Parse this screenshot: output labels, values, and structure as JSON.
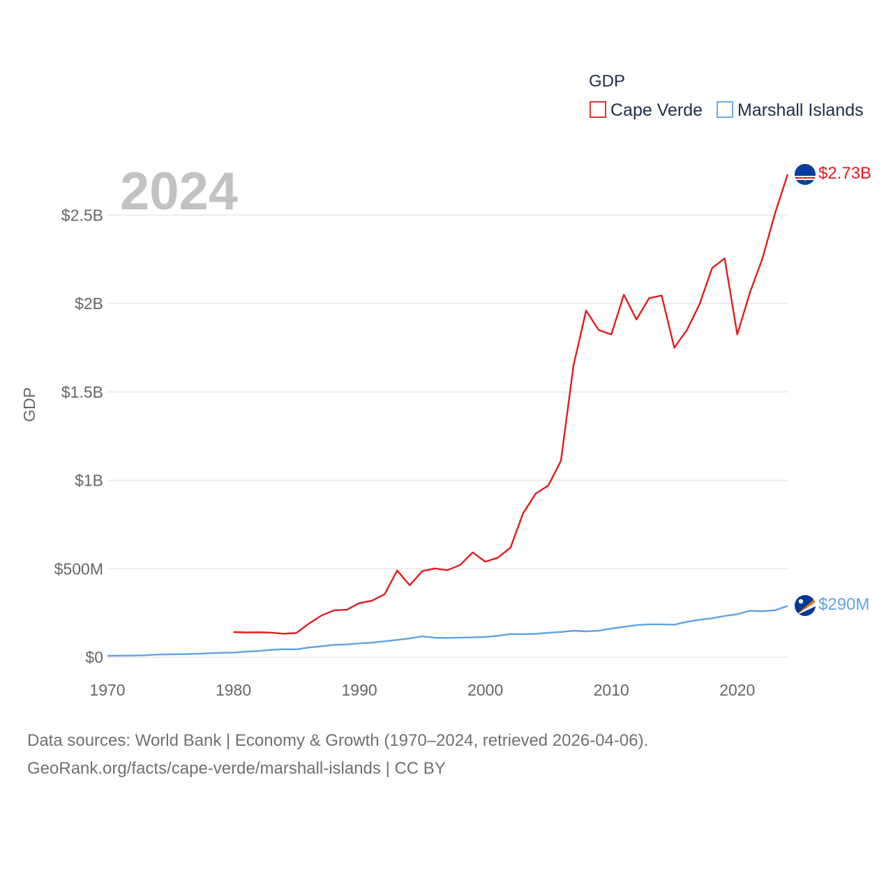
{
  "year_label": "2024",
  "colors": {
    "cape_verde": "#e41a1c",
    "marshall_islands": "#5fa2e5",
    "grid": "#e8e8e8",
    "text": "#666666"
  },
  "legend": {
    "title": "GDP",
    "items": [
      "Cape Verde",
      "Marshall Islands"
    ]
  },
  "end_labels": {
    "cape_verde": "$2.73B",
    "marshall_islands": "$290M"
  },
  "flags": {
    "cape_verde": "cape-verde-flag-icon",
    "marshall_islands": "marshall-islands-flag-icon"
  },
  "source": {
    "line1": "Data sources: World Bank | Economy & Growth (1970–2024, retrieved 2026-04-06).",
    "line2": "GeoRank.org/facts/cape-verde/marshall-islands | CC BY"
  },
  "chart_data": {
    "type": "line",
    "title": "",
    "xlabel": "",
    "ylabel": "GDP",
    "xlim": [
      1970,
      2024
    ],
    "ylim": [
      0,
      2730000000
    ],
    "x_ticks": [
      1970,
      1980,
      1990,
      2000,
      2010,
      2020
    ],
    "y_ticks": [
      {
        "value": 0,
        "label": "$0"
      },
      {
        "value": 500000000,
        "label": "$500M"
      },
      {
        "value": 1000000000,
        "label": "$1B"
      },
      {
        "value": 1500000000,
        "label": "$1.5B"
      },
      {
        "value": 2000000000,
        "label": "$2B"
      },
      {
        "value": 2500000000,
        "label": "$2.5B"
      }
    ],
    "series": [
      {
        "name": "Cape Verde",
        "x": [
          1980,
          1981,
          1982,
          1983,
          1984,
          1985,
          1986,
          1987,
          1988,
          1989,
          1990,
          1991,
          1992,
          1993,
          1994,
          1995,
          1996,
          1997,
          1998,
          1999,
          2000,
          2001,
          2002,
          2003,
          2004,
          2005,
          2006,
          2007,
          2008,
          2009,
          2010,
          2011,
          2012,
          2013,
          2014,
          2015,
          2016,
          2017,
          2018,
          2019,
          2020,
          2021,
          2022,
          2023,
          2024
        ],
        "values": [
          142000000,
          140000000,
          141000000,
          139000000,
          133000000,
          137000000,
          190000000,
          236000000,
          265000000,
          268000000,
          306000000,
          319000000,
          356000000,
          490000000,
          407000000,
          487000000,
          502000000,
          492000000,
          522000000,
          592000000,
          540000000,
          563000000,
          620000000,
          814000000,
          925000000,
          971000000,
          1110000000,
          1650000000,
          1960000000,
          1850000000,
          1825000000,
          2050000000,
          1910000000,
          2030000000,
          2045000000,
          1750000000,
          1850000000,
          1995000000,
          2200000000,
          2255000000,
          1825000000,
          2060000000,
          2255000000,
          2510000000,
          2730000000
        ]
      },
      {
        "name": "Marshall Islands",
        "x": [
          1970,
          1971,
          1972,
          1973,
          1974,
          1975,
          1976,
          1977,
          1978,
          1979,
          1980,
          1981,
          1982,
          1983,
          1984,
          1985,
          1986,
          1987,
          1988,
          1989,
          1990,
          1991,
          1992,
          1993,
          1994,
          1995,
          1996,
          1997,
          1998,
          1999,
          2000,
          2001,
          2002,
          2003,
          2004,
          2005,
          2006,
          2007,
          2008,
          2009,
          2010,
          2011,
          2012,
          2013,
          2014,
          2015,
          2016,
          2017,
          2018,
          2019,
          2020,
          2021,
          2022,
          2023,
          2024
        ],
        "values": [
          8000000,
          8500000,
          9000000,
          11000000,
          15000000,
          16000000,
          17000000,
          19000000,
          22000000,
          25000000,
          26000000,
          31000000,
          35000000,
          42000000,
          45000000,
          44000000,
          55000000,
          62000000,
          70000000,
          72000000,
          78000000,
          82000000,
          90000000,
          98000000,
          106000000,
          118000000,
          110000000,
          109000000,
          111000000,
          112000000,
          114000000,
          121000000,
          131000000,
          130000000,
          132000000,
          138000000,
          143000000,
          150000000,
          146000000,
          150000000,
          162000000,
          172000000,
          181000000,
          186000000,
          186000000,
          184000000,
          200000000,
          212000000,
          220000000,
          233000000,
          243000000,
          262000000,
          260000000,
          265000000,
          290000000
        ]
      }
    ]
  }
}
